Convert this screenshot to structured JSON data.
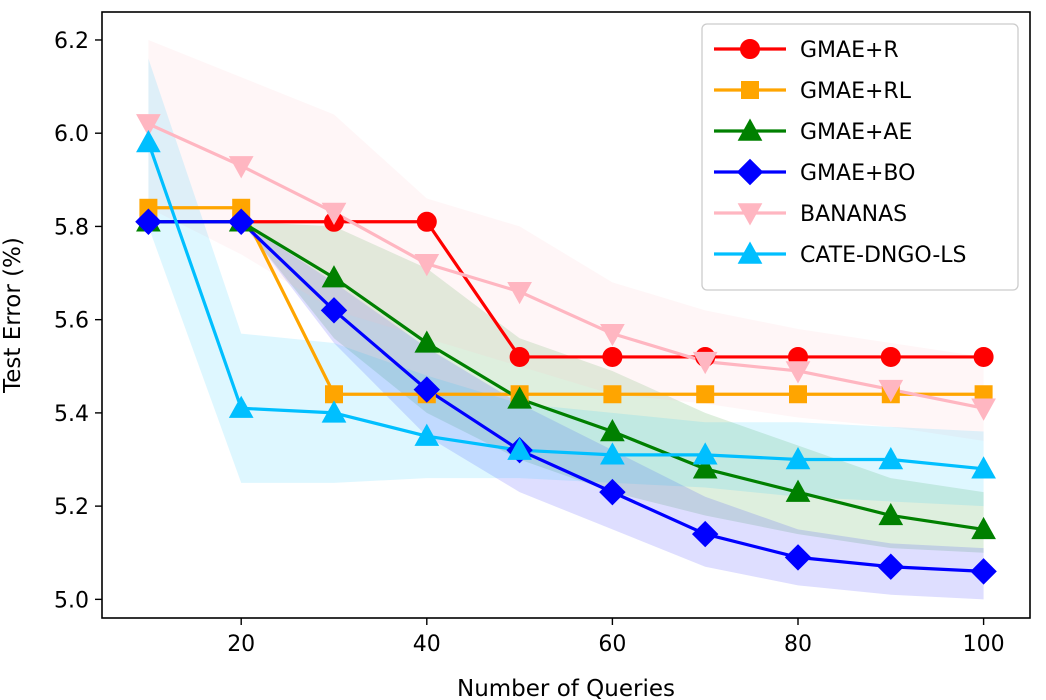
{
  "chart_data": {
    "type": "line",
    "title": "",
    "xlabel": "Number of Queries",
    "ylabel": "Test Error (%)",
    "xlim": [
      5,
      105
    ],
    "ylim": [
      4.96,
      6.26
    ],
    "xticks": [
      20,
      40,
      60,
      80,
      100
    ],
    "yticks": [
      5.0,
      5.2,
      5.4,
      5.6,
      5.8,
      6.0,
      6.2
    ],
    "x": [
      10,
      20,
      30,
      40,
      50,
      60,
      70,
      80,
      90,
      100
    ],
    "legend_position": "top-right",
    "series": [
      {
        "name": "GMAE+R",
        "color": "#ff0000",
        "marker": "circle",
        "values": [
          5.81,
          5.81,
          5.81,
          5.81,
          5.52,
          5.52,
          5.52,
          5.52,
          5.52,
          5.52
        ],
        "band_lower": [
          5.81,
          5.81,
          5.81,
          5.81,
          5.52,
          5.52,
          5.52,
          5.52,
          5.52,
          5.52
        ],
        "band_upper": [
          5.81,
          5.81,
          5.81,
          5.81,
          5.52,
          5.52,
          5.52,
          5.52,
          5.52,
          5.52
        ]
      },
      {
        "name": "GMAE+RL",
        "color": "#ffa500",
        "marker": "square",
        "values": [
          5.84,
          5.84,
          5.44,
          5.44,
          5.44,
          5.44,
          5.44,
          5.44,
          5.44,
          5.44
        ],
        "band_lower": [
          5.84,
          5.84,
          5.44,
          5.44,
          5.44,
          5.44,
          5.44,
          5.44,
          5.44,
          5.44
        ],
        "band_upper": [
          5.84,
          5.84,
          5.44,
          5.44,
          5.44,
          5.44,
          5.44,
          5.44,
          5.44,
          5.44
        ]
      },
      {
        "name": "GMAE+AE",
        "color": "#008000",
        "marker": "triangle-up",
        "values": [
          5.81,
          5.81,
          5.69,
          5.55,
          5.43,
          5.36,
          5.28,
          5.23,
          5.18,
          5.15
        ],
        "band_lower": [
          5.81,
          5.81,
          5.56,
          5.4,
          5.3,
          5.23,
          5.18,
          5.14,
          5.11,
          5.1
        ],
        "band_upper": [
          5.81,
          5.81,
          5.8,
          5.71,
          5.56,
          5.49,
          5.4,
          5.33,
          5.26,
          5.23
        ]
      },
      {
        "name": "GMAE+BO",
        "color": "#0000ff",
        "marker": "diamond",
        "values": [
          5.81,
          5.81,
          5.62,
          5.45,
          5.32,
          5.23,
          5.14,
          5.09,
          5.07,
          5.06
        ],
        "band_lower": [
          5.81,
          5.81,
          5.55,
          5.35,
          5.23,
          5.15,
          5.07,
          5.03,
          5.01,
          5.0
        ],
        "band_upper": [
          5.81,
          5.81,
          5.68,
          5.54,
          5.42,
          5.32,
          5.22,
          5.15,
          5.12,
          5.11
        ]
      },
      {
        "name": "BANANAS",
        "color": "#ffb6c1",
        "marker": "triangle-down",
        "values": [
          6.02,
          5.93,
          5.83,
          5.72,
          5.66,
          5.57,
          5.51,
          5.49,
          5.45,
          5.41
        ],
        "band_lower": [
          5.84,
          5.74,
          5.62,
          5.56,
          5.5,
          5.44,
          5.42,
          5.39,
          5.37,
          5.34
        ],
        "band_upper": [
          6.2,
          6.12,
          6.04,
          5.86,
          5.8,
          5.68,
          5.62,
          5.58,
          5.55,
          5.52
        ]
      },
      {
        "name": "CATE-DNGO-LS",
        "color": "#00bfff",
        "marker": "triangle-up",
        "values": [
          5.98,
          5.41,
          5.4,
          5.35,
          5.32,
          5.31,
          5.31,
          5.3,
          5.3,
          5.28
        ],
        "band_lower": [
          5.8,
          5.25,
          5.25,
          5.26,
          5.26,
          5.25,
          5.24,
          5.22,
          5.21,
          5.2
        ],
        "band_upper": [
          6.16,
          5.57,
          5.55,
          5.48,
          5.42,
          5.4,
          5.38,
          5.38,
          5.37,
          5.36
        ]
      }
    ]
  }
}
